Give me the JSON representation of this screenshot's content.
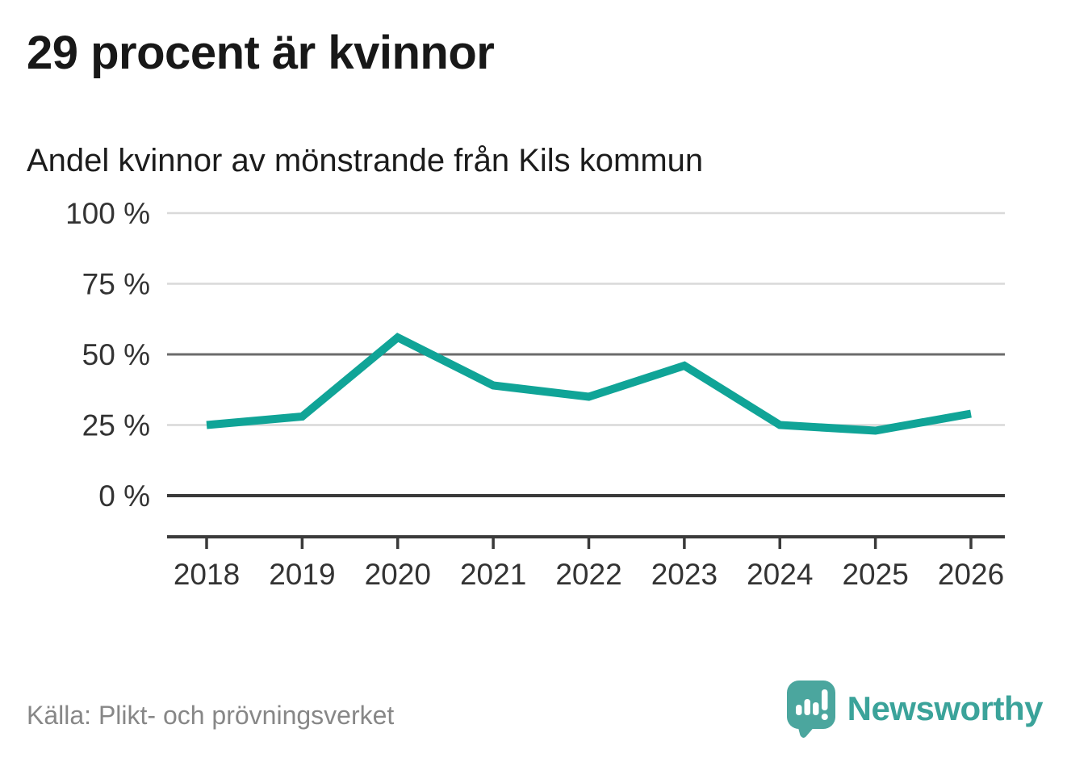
{
  "header": {
    "title": "29 procent är kvinnor",
    "subtitle": "Andel kvinnor av mönstrande från Kils kommun"
  },
  "chart_data": {
    "type": "line",
    "title": "Andel kvinnor av mönstrande från Kils kommun",
    "categories": [
      "2018",
      "2019",
      "2020",
      "2021",
      "2022",
      "2023",
      "2024",
      "2025",
      "2026"
    ],
    "series": [
      {
        "name": "Andel kvinnor av mönstrande",
        "values": [
          25,
          28,
          56,
          39,
          35,
          46,
          25,
          23,
          29
        ]
      }
    ],
    "unit": "%",
    "xlabel": "",
    "ylabel": "",
    "ylim": [
      0,
      100
    ],
    "grid": true,
    "legend": "none",
    "line_color": "#10a497",
    "y_ticks": [
      {
        "value": 100,
        "label": "100 %",
        "style": "light"
      },
      {
        "value": 75,
        "label": "75 %",
        "style": "light"
      },
      {
        "value": 50,
        "label": "50 %",
        "style": "mid"
      },
      {
        "value": 25,
        "label": "25 %",
        "style": "light"
      },
      {
        "value": 0,
        "label": "0 %",
        "style": "dark"
      }
    ]
  },
  "footer": {
    "source": "Källa: Plikt- och prövningsverket",
    "brand": "Newsworthy",
    "brand_color": "#3ba39a",
    "logo_bubble_color": "#4ba69e"
  }
}
